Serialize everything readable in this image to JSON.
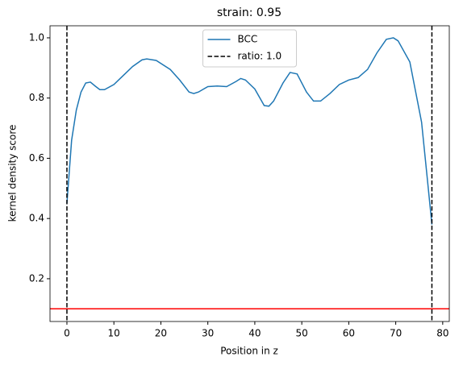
{
  "chart_data": {
    "type": "line",
    "title": "strain: 0.95",
    "xlabel": "Position in z",
    "ylabel": "kernel density score",
    "series": [
      {
        "name": "BCC",
        "color": "#1f77b4",
        "x": [
          0,
          1,
          2,
          3,
          4,
          5,
          6,
          7,
          8,
          10,
          12,
          14,
          16,
          17,
          19,
          22,
          24,
          26,
          27,
          28,
          30,
          32,
          34,
          36,
          37,
          38,
          40,
          42,
          43,
          44,
          46,
          47.5,
          49,
          51,
          52.5,
          54,
          56,
          58,
          60,
          62,
          64,
          66,
          68,
          69.5,
          70.5,
          73,
          75.5,
          76.8,
          77.7
        ],
        "values": [
          0.45,
          0.66,
          0.76,
          0.82,
          0.85,
          0.853,
          0.84,
          0.828,
          0.828,
          0.845,
          0.875,
          0.905,
          0.927,
          0.93,
          0.925,
          0.895,
          0.86,
          0.82,
          0.815,
          0.82,
          0.838,
          0.84,
          0.838,
          0.855,
          0.865,
          0.86,
          0.83,
          0.775,
          0.773,
          0.79,
          0.85,
          0.885,
          0.88,
          0.82,
          0.79,
          0.79,
          0.815,
          0.845,
          0.86,
          0.868,
          0.895,
          0.95,
          0.995,
          1.0,
          0.99,
          0.92,
          0.72,
          0.52,
          0.38
        ]
      }
    ],
    "vlines": {
      "name": "ratio: 1.0",
      "color": "#000000",
      "x": [
        0,
        77.7
      ]
    },
    "hline": {
      "value": 0.1,
      "color": "#ff0000"
    },
    "xlim": [
      -3.6,
      81.4
    ],
    "ylim": [
      0.058,
      1.04
    ],
    "xticks": [
      0,
      10,
      20,
      30,
      40,
      50,
      60,
      70,
      80
    ],
    "yticks": [
      0.2,
      0.4,
      0.6,
      0.8,
      {
        "value": 1,
        "label": "1.0"
      }
    ],
    "legend": "upper center"
  }
}
